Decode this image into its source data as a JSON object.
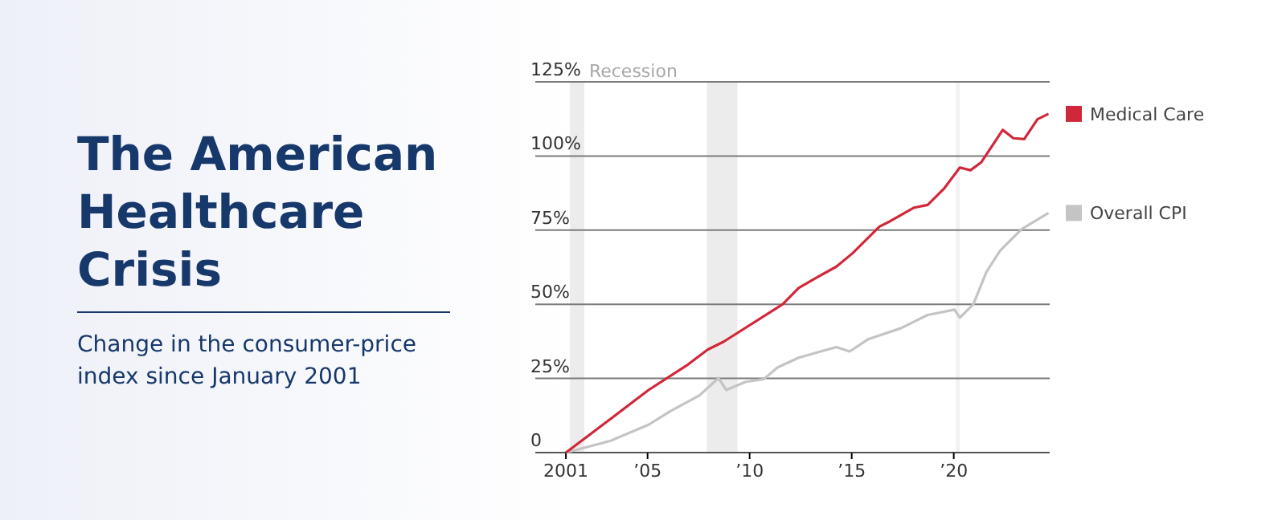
{
  "chart_data": {
    "type": "line",
    "title": "The American Healthcare Crisis",
    "subtitle": "Change in the consumer-price index since January 2001",
    "xlim": [
      1999.5,
      2024.7
    ],
    "xticks": [
      {
        "value": 2001,
        "label": "2001"
      },
      {
        "value": 2005,
        "label": "’05"
      },
      {
        "value": 2010,
        "label": "’10"
      },
      {
        "value": 2015,
        "label": "’15"
      },
      {
        "value": 2020,
        "label": "’20"
      }
    ],
    "ylim": [
      0,
      125
    ],
    "yticks": [
      {
        "value": 0,
        "label": "0"
      },
      {
        "value": 25,
        "label": "25%"
      },
      {
        "value": 50,
        "label": "50%"
      },
      {
        "value": 75,
        "label": "75%"
      },
      {
        "value": 100,
        "label": "100%"
      },
      {
        "value": 125,
        "label": "125%"
      }
    ],
    "grid": "y",
    "legend": "right",
    "bands": [
      {
        "axis": "x",
        "from": 2001.2,
        "to": 2001.9,
        "label": "Recession",
        "color": "#ececec"
      },
      {
        "axis": "x",
        "from": 2007.9,
        "to": 2009.4,
        "color": "#ececec"
      },
      {
        "axis": "x",
        "from": 2020.1,
        "to": 2020.3,
        "color": "#f2f2f2"
      }
    ],
    "series": [
      {
        "name": "Medical Care",
        "color": "#d0283a",
        "x": [
          2001,
          2002.81,
          2005.05,
          2006.9,
          2007.94,
          2008.73,
          2011.62,
          2012.4,
          2013.2,
          2014.25,
          2015.04,
          2016.36,
          2016.88,
          2018.06,
          2018.72,
          2019.51,
          2020.3,
          2020.82,
          2021.35,
          2022.4,
          2022.92,
          2023.45,
          2024.1,
          2024.64
        ],
        "values": [
          0,
          9.4,
          21.1,
          29.3,
          34.7,
          37.4,
          50,
          55.5,
          58.7,
          62.7,
          67.2,
          76.2,
          78,
          82.6,
          83.5,
          88.9,
          96.1,
          95.2,
          97.9,
          108.8,
          106,
          105.7,
          112.4,
          114.2
        ]
      },
      {
        "name": "Overall CPI",
        "color": "#c4c4c4",
        "x": [
          2001,
          2003.2,
          2005.05,
          2006.1,
          2007.55,
          2008.47,
          2008.86,
          2009.78,
          2010.7,
          2011.36,
          2012.4,
          2014.25,
          2014.9,
          2015.83,
          2017.4,
          2018.72,
          2020.04,
          2020.3,
          2020.96,
          2021.6,
          2022.27,
          2023.32,
          2024.64
        ],
        "values": [
          0,
          4,
          9.4,
          13.9,
          19.3,
          25.1,
          21.1,
          23.8,
          24.8,
          28.7,
          32,
          35.6,
          34.1,
          38.3,
          41.9,
          46.4,
          48.2,
          45.5,
          50,
          60.9,
          68.1,
          75.3,
          80.8
        ]
      }
    ]
  }
}
